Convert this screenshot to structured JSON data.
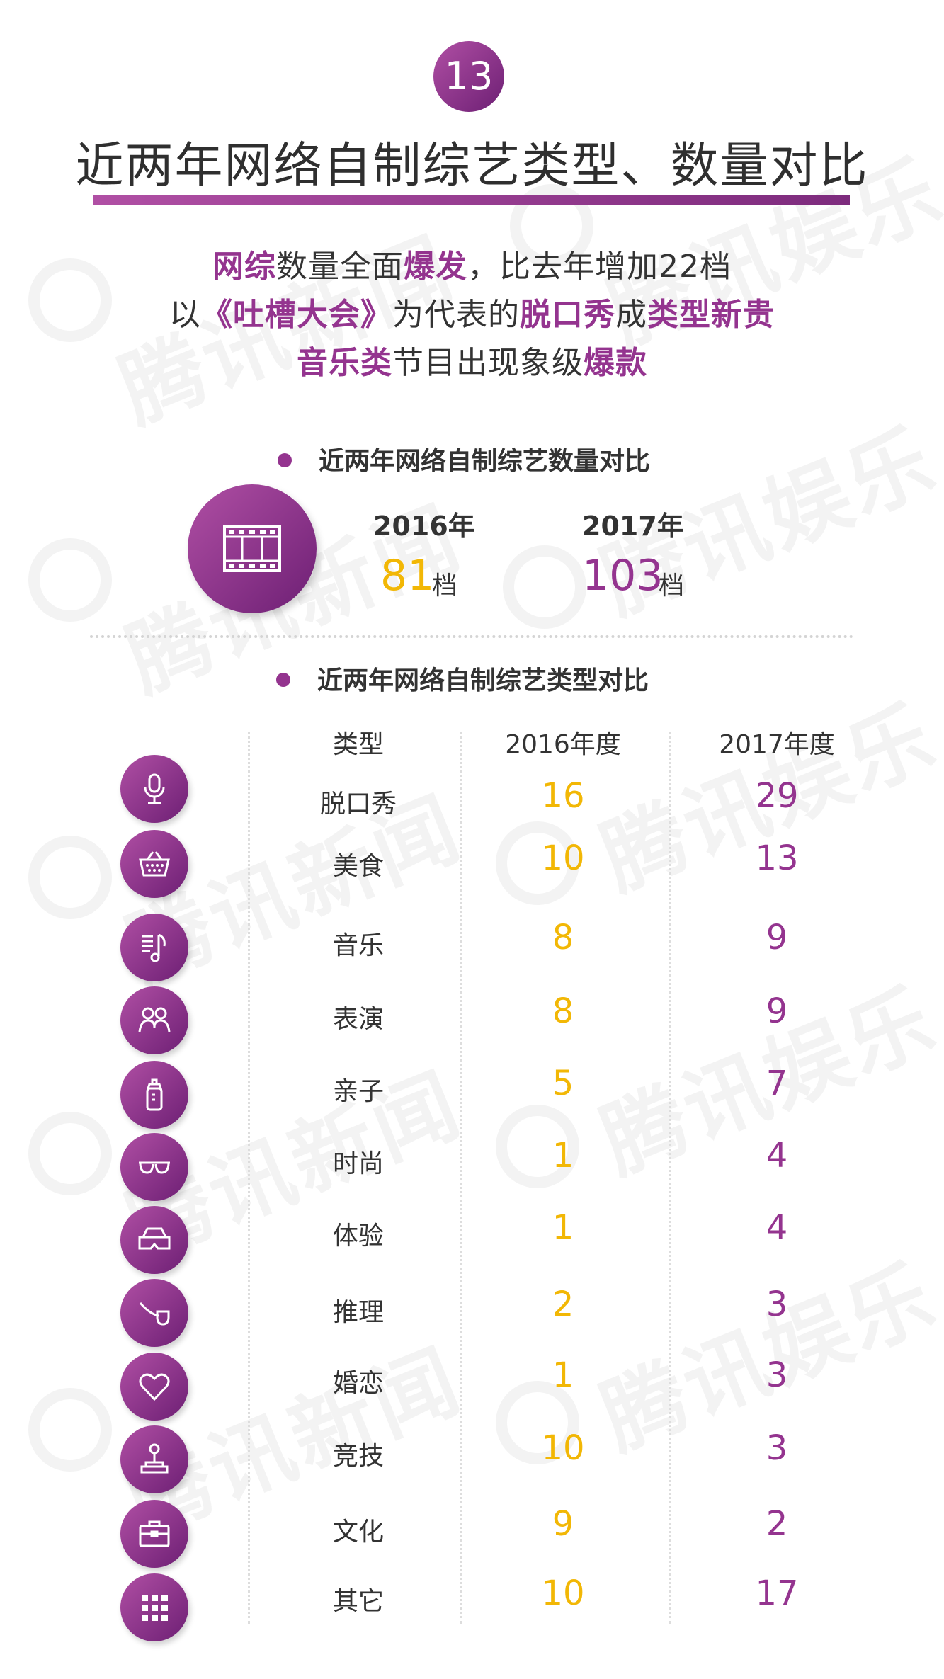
{
  "badge": "13",
  "title": "近两年网络自制综艺类型、数量对比",
  "lead": {
    "line1": [
      {
        "t": "网综",
        "hl": true
      },
      {
        "t": "数量全面",
        "hl": false
      },
      {
        "t": "爆发",
        "hl": true
      },
      {
        "t": "，比去年增加22档",
        "hl": false
      }
    ],
    "line2": [
      {
        "t": "以",
        "hl": false
      },
      {
        "t": "《吐槽大会》",
        "hl": true
      },
      {
        "t": "为代表的",
        "hl": false
      },
      {
        "t": "脱口秀",
        "hl": true
      },
      {
        "t": "成",
        "hl": false
      },
      {
        "t": "类型新贵",
        "hl": true
      }
    ],
    "line3": [
      {
        "t": "音乐类",
        "hl": true
      },
      {
        "t": "节目出现象级",
        "hl": false
      },
      {
        "t": "爆款",
        "hl": true
      }
    ]
  },
  "section1": {
    "heading": "近两年网络自制综艺数量对比",
    "icon": "film-icon",
    "y2016_label": "2016年",
    "y2016_value": "81",
    "y2017_label": "2017年",
    "y2017_value": "103",
    "unit": "档"
  },
  "section2": {
    "heading": "近两年网络自制综艺类型对比",
    "columns": [
      "类型",
      "2016年度",
      "2017年度"
    ],
    "rows": [
      {
        "icon": "microphone-icon",
        "category": "脱口秀",
        "y2016": "16",
        "y2017": "29"
      },
      {
        "icon": "basket-icon",
        "category": "美食",
        "y2016": "10",
        "y2017": "13"
      },
      {
        "icon": "music-note-icon",
        "category": "音乐",
        "y2016": "8",
        "y2017": "9"
      },
      {
        "icon": "performers-icon",
        "category": "表演",
        "y2016": "8",
        "y2017": "9"
      },
      {
        "icon": "baby-bottle-icon",
        "category": "亲子",
        "y2016": "5",
        "y2017": "7"
      },
      {
        "icon": "sunglasses-icon",
        "category": "时尚",
        "y2016": "1",
        "y2017": "4"
      },
      {
        "icon": "vr-goggles-icon",
        "category": "体验",
        "y2016": "1",
        "y2017": "4"
      },
      {
        "icon": "pipe-icon",
        "category": "推理",
        "y2016": "2",
        "y2017": "3"
      },
      {
        "icon": "heart-icon",
        "category": "婚恋",
        "y2016": "1",
        "y2017": "3"
      },
      {
        "icon": "joystick-icon",
        "category": "竞技",
        "y2016": "10",
        "y2017": "3"
      },
      {
        "icon": "briefcase-icon",
        "category": "文化",
        "y2016": "9",
        "y2017": "2"
      },
      {
        "icon": "grid-icon",
        "category": "其它",
        "y2016": "10",
        "y2017": "17"
      }
    ]
  },
  "watermark": "腾讯新闻 腾讯娱乐",
  "colors": {
    "accent": "#94348f",
    "highlight2016": "#f2b705",
    "text": "#333333"
  }
}
